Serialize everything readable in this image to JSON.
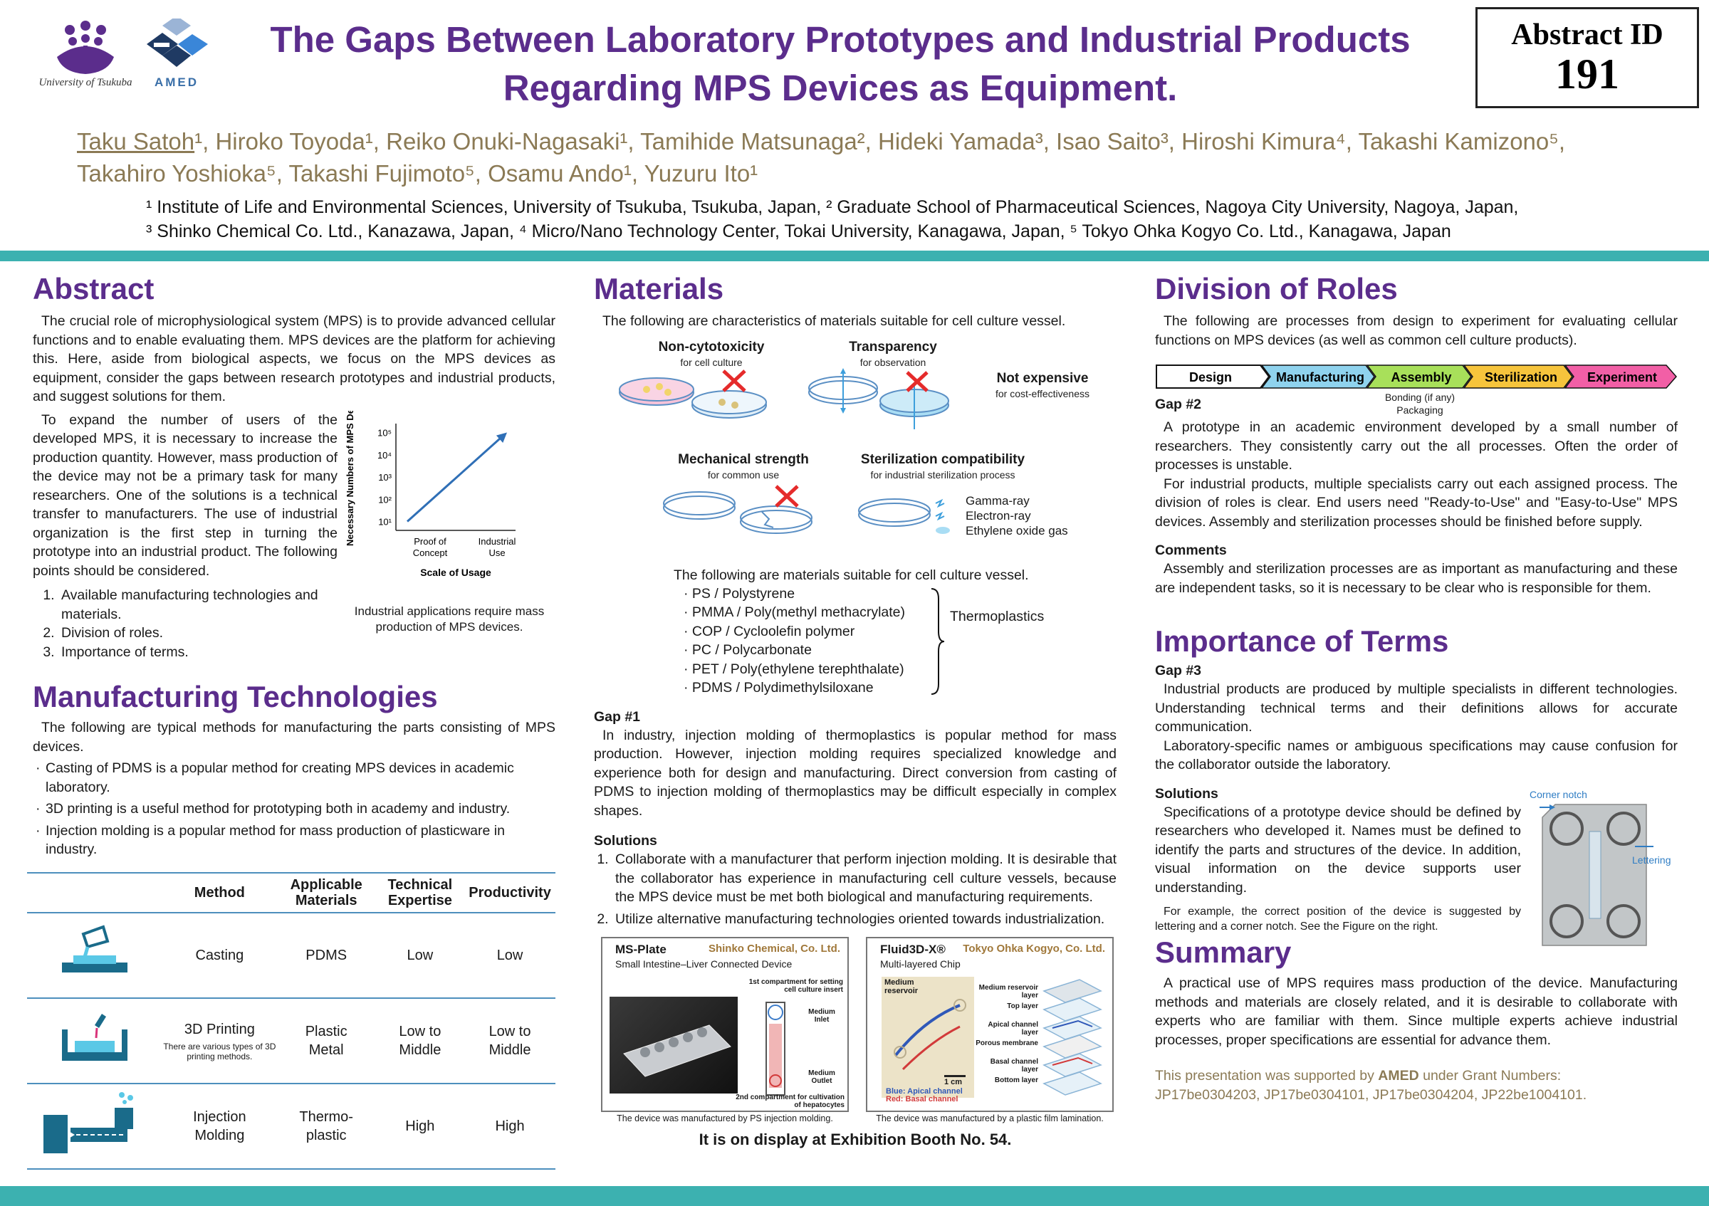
{
  "header": {
    "tsukuba_label": "University of Tsukuba",
    "amed_label": "AMED",
    "title_line1": "The Gaps Between Laboratory Prototypes and Industrial Products",
    "title_line2": "Regarding MPS Devices as Equipment.",
    "abstract_label": "Abstract ID",
    "abstract_id": "191",
    "presenter": "Taku Satoh",
    "authors_rest_line1": "¹, Hiroko Toyoda¹, Reiko Onuki-Nagasaki¹, Tamihide Matsunaga², Hideki Yamada³, Isao Saito³, Hiroshi Kimura⁴, Takashi Kamizono⁵,",
    "authors_line2": "Takahiro Yoshioka⁵, Takashi Fujimoto⁵, Osamu Ando¹, Yuzuru Ito¹",
    "affil_line1": "¹ Institute of Life and Environmental Sciences, University of Tsukuba, Tsukuba, Japan, ² Graduate School of Pharmaceutical Sciences, Nagoya City University, Nagoya, Japan,",
    "affil_line2": "³ Shinko Chemical Co. Ltd., Kanazawa, Japan, ⁴ Micro/Nano Technology Center, Tokai University, Kanagawa, Japan, ⁵ Tokyo Ohka Kogyo Co. Ltd., Kanagawa, Japan"
  },
  "abstract": {
    "heading": "Abstract",
    "p1": "The crucial role of microphysiological system (MPS) is to provide advanced cellular functions and to enable evaluating them. MPS devices are the platform for achieving this. Here, aside from biological aspects, we focus on the MPS devices as equipment, consider the gaps between research prototypes and industrial products, and suggest solutions for them.",
    "p2": "To expand the number of users of the developed MPS, it is necessary to increase the production quantity. However, mass production of the device may not be a primary task for many researchers. One of the solutions is a technical transfer to manufacturers. The use of industrial organization is the first step in turning the prototype into an industrial product. The following points should be considered.",
    "points": [
      "Available manufacturing technologies and materials.",
      "Division of roles.",
      "Importance of terms."
    ],
    "chart_caption": "Industrial applications require mass production of MPS devices."
  },
  "chart_data": {
    "type": "line",
    "x": [
      "Proof of Concept",
      "Industrial Use"
    ],
    "series": [
      {
        "values": [
          10,
          100000
        ]
      }
    ],
    "ylabel": "Necessary Numbers of MPS Device",
    "xlabel": "Scale of Usage",
    "yticks": [
      "10¹",
      "10²",
      "10³",
      "10⁴",
      "10⁵"
    ],
    "xticks": [
      "Proof of Concept",
      "Industrial Use"
    ],
    "log_scale_y": true,
    "line_color": "#2f6fb6"
  },
  "manufacturing": {
    "heading": "Manufacturing Technologies",
    "intro": "The following are typical methods for manufacturing the parts consisting of MPS devices.",
    "bullets": [
      "Casting of PDMS is a popular method for creating MPS devices in academic laboratory.",
      "3D printing is a useful method for prototyping both in academy and industry.",
      "Injection molding is a popular method for mass production of plasticware in industry."
    ],
    "table_headers": [
      "Method",
      "Applicable Materials",
      "Technical Expertise",
      "Productivity"
    ],
    "rows": [
      {
        "icon": "casting-icon",
        "method": "Casting",
        "note": "",
        "materials": "PDMS",
        "expertise": "Low",
        "productivity": "Low"
      },
      {
        "icon": "3d-printer-icon",
        "method": "3D Printing",
        "note": "There are various types of 3D printing methods.",
        "materials": "Plastic Metal",
        "expertise": "Low to Middle",
        "productivity": "Low to Middle"
      },
      {
        "icon": "injection-molding-icon",
        "method": "Injection Molding",
        "note": "",
        "materials": "Thermo-plastic",
        "expertise": "High",
        "productivity": "High"
      }
    ]
  },
  "materials": {
    "heading": "Materials",
    "intro": "The following are characteristics of materials suitable for cell culture vessel.",
    "non_cyto": "Non-cytotoxicity",
    "non_cyto_sub": "for cell culture",
    "transparency": "Transparency",
    "transparency_sub": "for observation",
    "not_expensive": "Not expensive",
    "not_expensive_sub": "for cost-effectiveness",
    "mech": "Mechanical strength",
    "mech_sub": "for common use",
    "steril": "Sterilization compatibility",
    "steril_sub": "for industrial sterilization process",
    "steril_methods": [
      "Gamma-ray",
      "Electron-ray",
      "Ethylene oxide gas"
    ],
    "list_title": "The following are materials suitable for cell culture vessel.",
    "list": [
      "PS / Polystyrene",
      "PMMA / Poly(methyl methacrylate)",
      "COP / Cycloolefin polymer",
      "PC / Polycarbonate",
      "PET / Poly(ethylene terephthalate)",
      "PDMS / Polydimethylsiloxane"
    ],
    "thermo_label": "Thermoplastics",
    "gap_heading": "Gap #1",
    "gap_text": "In industry, injection molding of thermoplastics is popular method for mass production. However, injection molding requires specialized knowledge and experience both for design and manufacturing. Direct conversion from casting of PDMS to injection molding of thermoplastics may be difficult especially in complex shapes.",
    "solutions_heading": "Solutions",
    "solutions": [
      "Collaborate with a manufacturer that perform injection molding. It is desirable that the collaborator has experience in manufacturing cell culture vessels, because the MPS device must be met both biological and manufacturing requirements.",
      "Utilize alternative manufacturing technologies oriented towards industrialization."
    ],
    "dev1_name": "MS-Plate",
    "dev1_company": "Shinko Chemical, Co. Ltd.",
    "dev1_desc": "Small Intestine–Liver Connected Device",
    "dev1_l1": "1st compartment for setting cell culture insert",
    "dev1_l2": "Medium Inlet",
    "dev1_l3": "Medium Outlet",
    "dev1_l4": "2nd compartment for cultivation of hepatocytes",
    "dev1_caption": "The device was manufactured by PS injection molding.",
    "dev2_name": "Fluid3D-X®",
    "dev2_company": "Tokyo Ohka Kogyo, Co. Ltd.",
    "dev2_desc": "Multi-layered Chip",
    "dev2_reservoir": "Medium reservoir",
    "dev2_scale": "1 cm",
    "dev2_blue": "Blue: Apical channel",
    "dev2_red": "Red: Basal channel",
    "dev2_layers": [
      "Medium reservoir layer",
      "Top layer",
      "Apical channel layer",
      "Porous membrane",
      "Basal channel layer",
      "Bottom layer"
    ],
    "dev2_caption": "The device was manufactured by a plastic film lamination.",
    "booth": "It is on display at Exhibition Booth No. 54."
  },
  "roles": {
    "heading": "Division of Roles",
    "intro": "The following are processes from design to experiment for evaluating cellular functions on MPS devices (as well as common cell culture products).",
    "steps": [
      {
        "label": "Design",
        "color": "#ffffff"
      },
      {
        "label": "Manufacturing",
        "color": "#8fd3ee"
      },
      {
        "label": "Assembly",
        "color": "#a8e05a"
      },
      {
        "label": "Sterilization",
        "color": "#f6c43c"
      },
      {
        "label": "Experiment",
        "color": "#f25fa6"
      }
    ],
    "assembly_sub": "Bonding (if any) Packaging",
    "gap_heading": "Gap #2",
    "gap_p1": "A prototype in an academic environment developed by a small number of researchers. They consistently carry out the all processes. Often the order of processes is unstable.",
    "gap_p2": "For industrial products, multiple specialists carry out each assigned process. The division of roles is clear. End users need \"Ready-to-Use\" and \"Easy-to-Use\" MPS devices. Assembly and sterilization processes should be finished before supply.",
    "comments_heading": "Comments",
    "comments": "Assembly and sterilization processes are as important as manufacturing and these are independent tasks, so it is necessary to be clear who is responsible for them."
  },
  "terms": {
    "heading": "Importance of Terms",
    "gap_heading": "Gap #3",
    "gap_p1": "Industrial products are produced by multiple specialists in different technologies. Understanding technical terms and their definitions allows for accurate communication.",
    "gap_p2": "Laboratory-specific names or ambiguous specifications may cause confusion for the collaborator outside the laboratory.",
    "solutions_heading": "Solutions",
    "sol_p1": "Specifications of a prototype device should be defined by researchers who developed it. Names must be defined to identify the parts and structures of the device. In addition, visual information on the device supports user understanding.",
    "sol_p2": "For example, the correct position of the device is suggested by lettering and a corner notch. See the Figure on the right.",
    "corner_notch": "Corner notch",
    "lettering": "Lettering"
  },
  "summary": {
    "heading": "Summary",
    "text": "A practical use of MPS requires mass production of the device. Manufacturing methods and materials are closely related, and it is desirable to collaborate with experts who are familiar with them. Since multiple experts achieve industrial processes, proper specifications are essential for advance them.",
    "ack_pre": "This presentation was supported by ",
    "ack_org": "AMED",
    "ack_post": " under Grant Numbers:",
    "grants": "JP17be0304203, JP17be0304101, JP17be0304204, JP22be1004101."
  }
}
